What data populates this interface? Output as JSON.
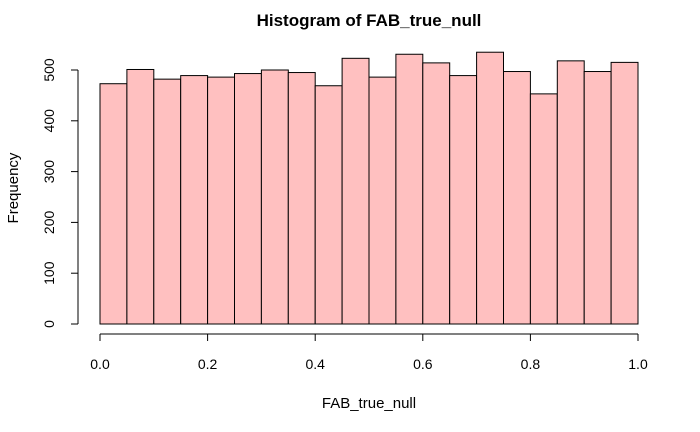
{
  "chart_data": {
    "type": "bar",
    "title": "Histogram of FAB_true_null",
    "xlabel": "FAB_true_null",
    "ylabel": "Frequency",
    "bar_color": "#FFC0C0",
    "xlim": [
      0,
      1
    ],
    "ylim": [
      0,
      540
    ],
    "x_ticks": [
      "0.0",
      "0.2",
      "0.4",
      "0.6",
      "0.8",
      "1.0"
    ],
    "y_ticks": [
      "0",
      "100",
      "200",
      "300",
      "400",
      "500"
    ],
    "bins": [
      {
        "x0": 0.0,
        "x1": 0.05,
        "count": 473
      },
      {
        "x0": 0.05,
        "x1": 0.1,
        "count": 501
      },
      {
        "x0": 0.1,
        "x1": 0.15,
        "count": 482
      },
      {
        "x0": 0.15,
        "x1": 0.2,
        "count": 489
      },
      {
        "x0": 0.2,
        "x1": 0.25,
        "count": 486
      },
      {
        "x0": 0.25,
        "x1": 0.3,
        "count": 493
      },
      {
        "x0": 0.3,
        "x1": 0.35,
        "count": 500
      },
      {
        "x0": 0.35,
        "x1": 0.4,
        "count": 495
      },
      {
        "x0": 0.4,
        "x1": 0.45,
        "count": 469
      },
      {
        "x0": 0.45,
        "x1": 0.5,
        "count": 523
      },
      {
        "x0": 0.5,
        "x1": 0.55,
        "count": 486
      },
      {
        "x0": 0.55,
        "x1": 0.6,
        "count": 531
      },
      {
        "x0": 0.6,
        "x1": 0.65,
        "count": 514
      },
      {
        "x0": 0.65,
        "x1": 0.7,
        "count": 489
      },
      {
        "x0": 0.7,
        "x1": 0.75,
        "count": 535
      },
      {
        "x0": 0.75,
        "x1": 0.8,
        "count": 497
      },
      {
        "x0": 0.8,
        "x1": 0.85,
        "count": 453
      },
      {
        "x0": 0.85,
        "x1": 0.9,
        "count": 518
      },
      {
        "x0": 0.9,
        "x1": 0.95,
        "count": 497
      },
      {
        "x0": 0.95,
        "x1": 1.0,
        "count": 515
      }
    ]
  }
}
